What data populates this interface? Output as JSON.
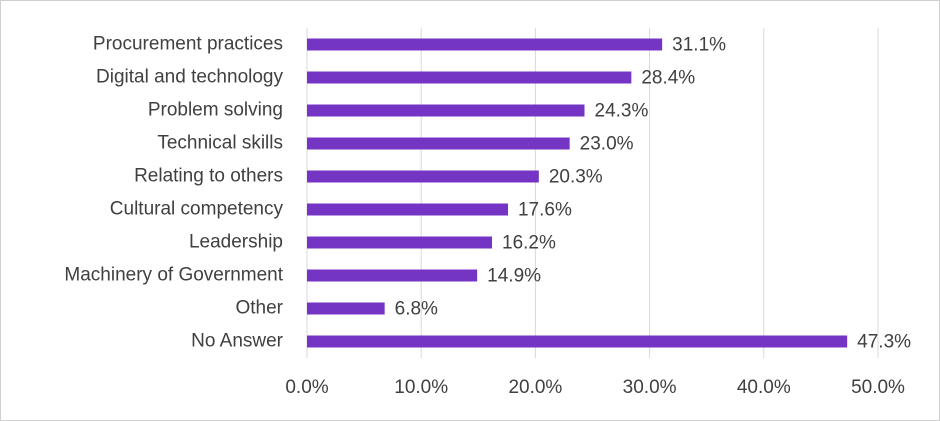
{
  "chart_data": {
    "type": "hbar",
    "categories": [
      "Procurement practices",
      "Digital and technology",
      "Problem solving",
      "Technical skills",
      "Relating to others",
      "Cultural competency",
      "Leadership",
      "Machinery of Government",
      "Other",
      "No Answer"
    ],
    "values": [
      31.1,
      28.4,
      24.3,
      23.0,
      20.3,
      17.6,
      16.2,
      14.9,
      6.8,
      47.3
    ],
    "value_labels": [
      "31.1%",
      "28.4%",
      "24.3%",
      "23.0%",
      "20.3%",
      "17.6%",
      "16.2%",
      "14.9%",
      "6.8%",
      "47.3%"
    ],
    "color": "#7434c4",
    "xlim": [
      0,
      50
    ],
    "xticks": [
      {
        "value": 0,
        "label": "0.0%"
      },
      {
        "value": 10,
        "label": "10.0%"
      },
      {
        "value": 20,
        "label": "20.0%"
      },
      {
        "value": 30,
        "label": "30.0%"
      },
      {
        "value": 40,
        "label": "40.0%"
      },
      {
        "value": 50,
        "label": "50.0%"
      }
    ],
    "grid": true
  }
}
